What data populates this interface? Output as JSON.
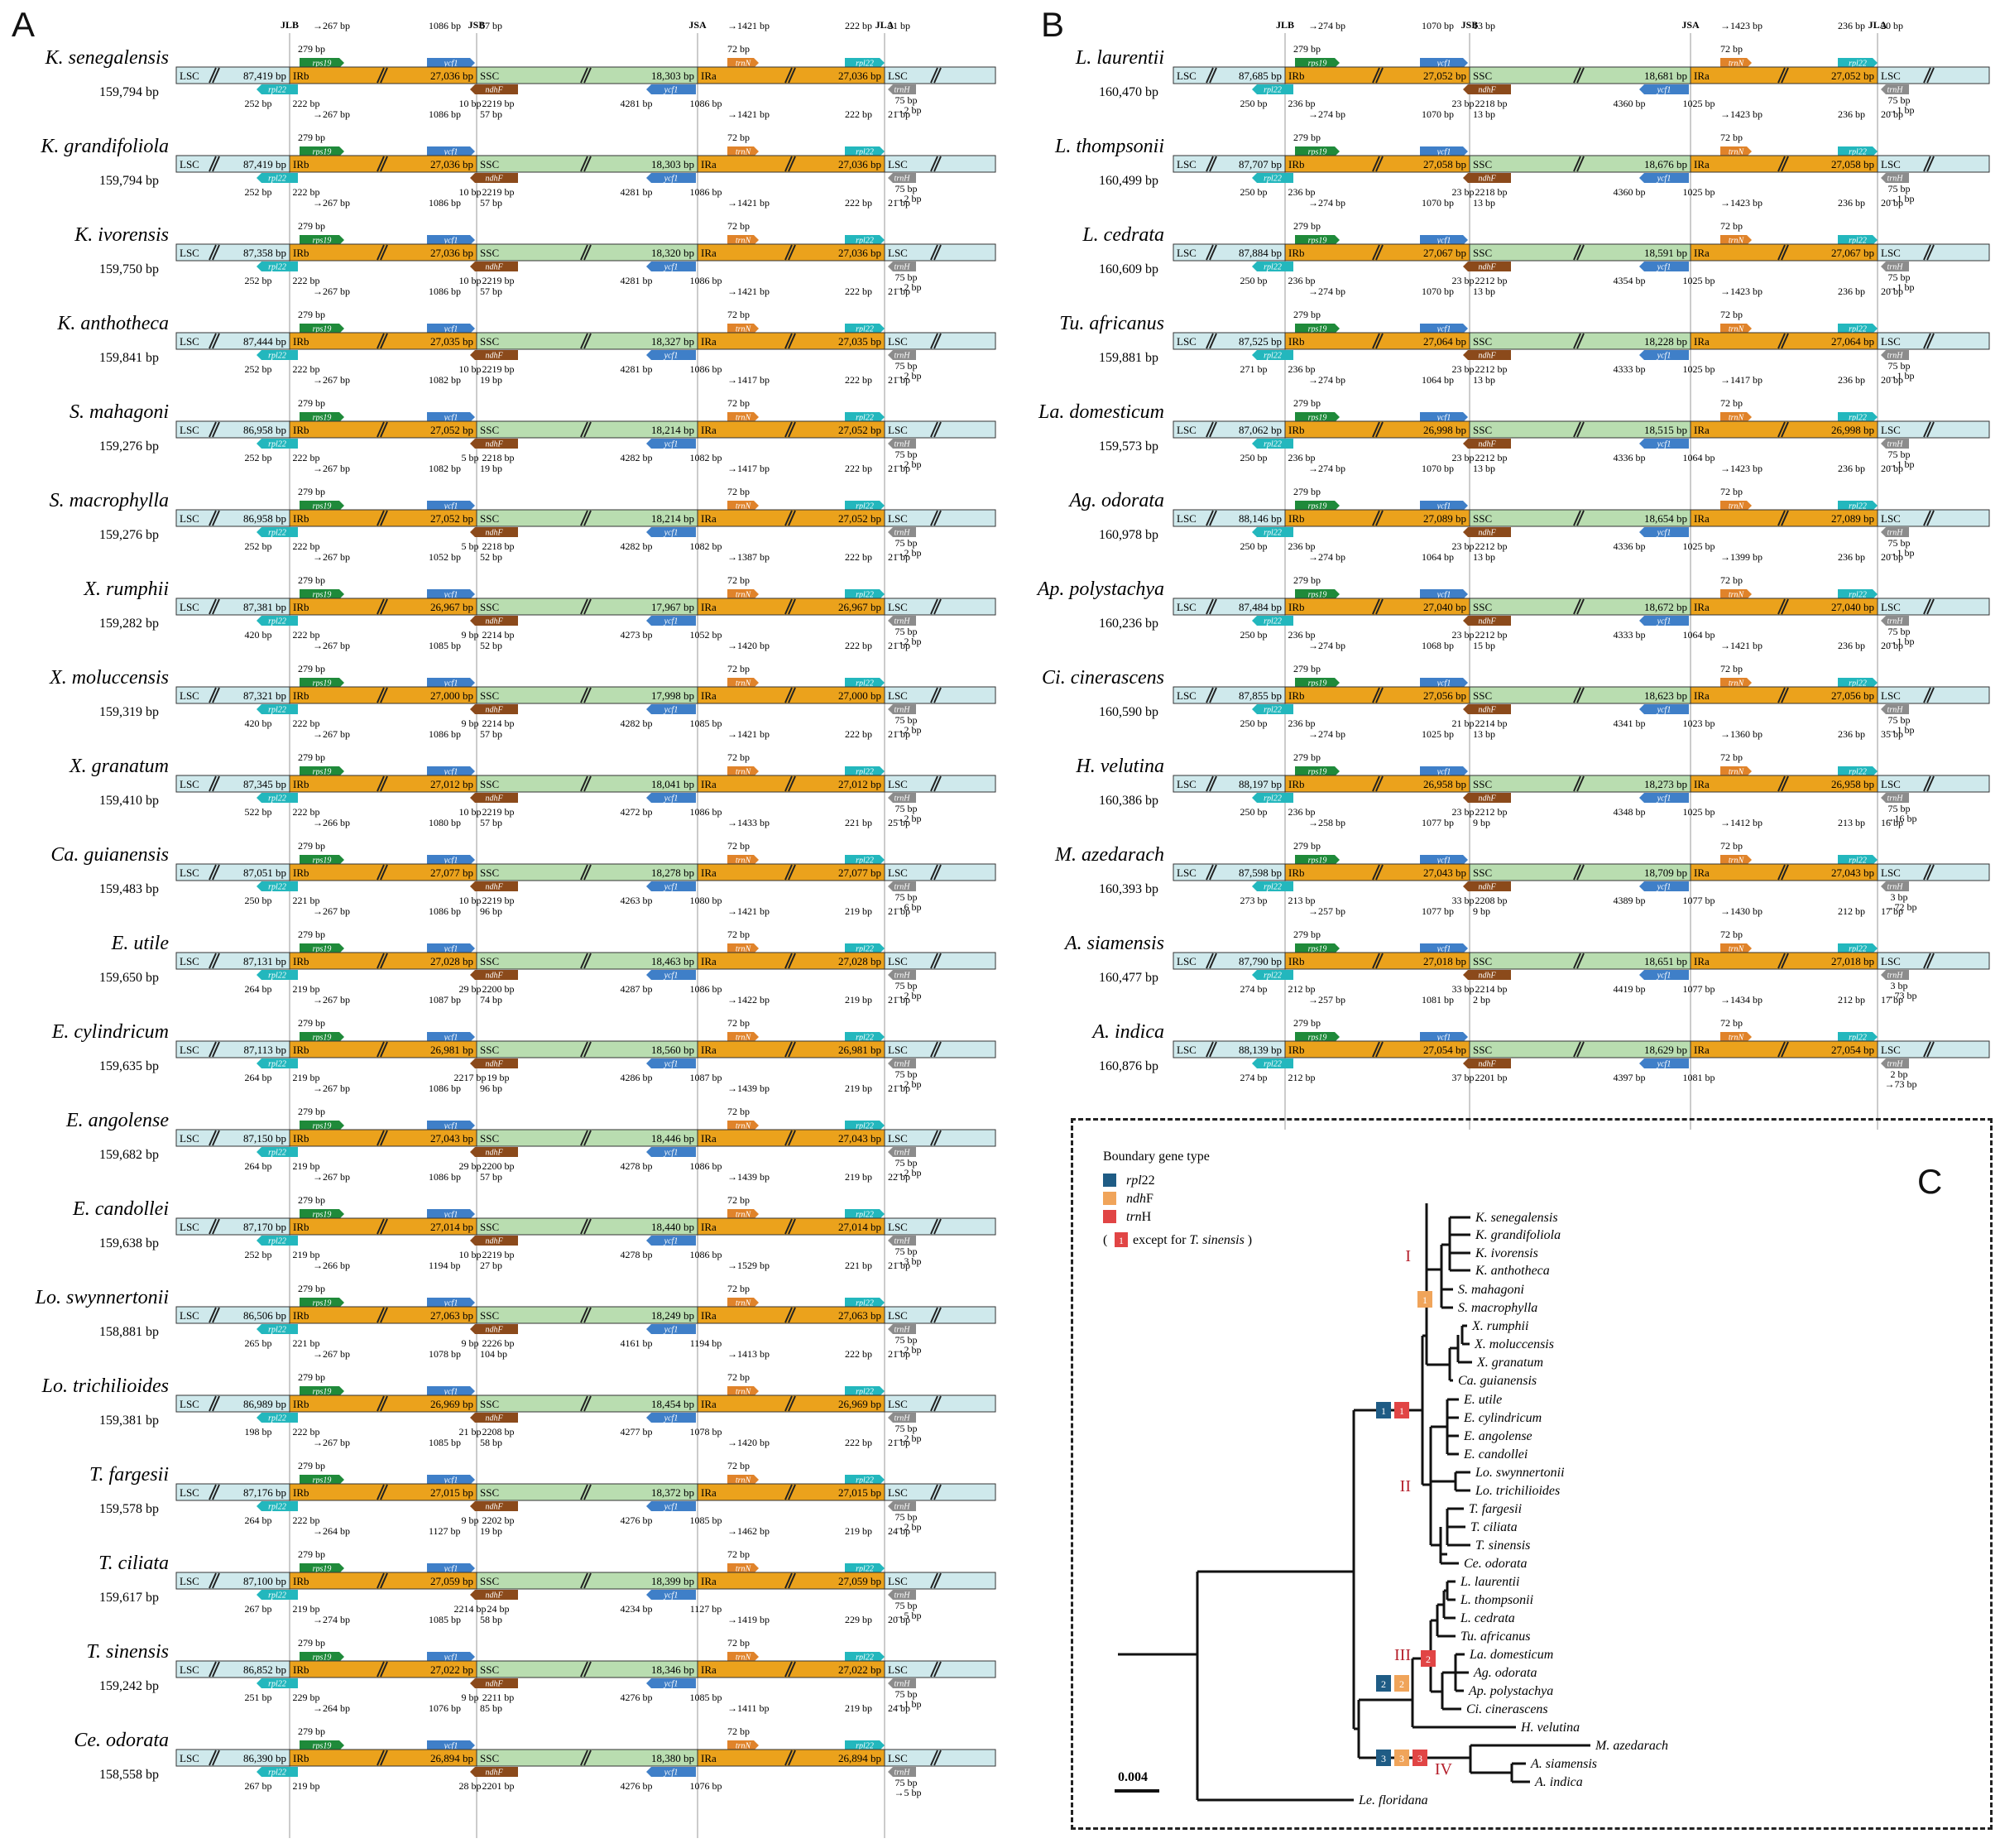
{
  "panels": {
    "a": {
      "letter": "A"
    },
    "b": {
      "letter": "B"
    },
    "c": {
      "letter": "C"
    }
  },
  "junctions": [
    "JLB",
    "JSB",
    "JSA",
    "JLA"
  ],
  "region_labels": {
    "lsc": "LSC",
    "irb": "IRb",
    "ssc": "SSC",
    "ira": "IRa"
  },
  "gene_names": {
    "rps19": "rps19",
    "ycf1": "ycf1",
    "ndhF": "ndhF",
    "trnN": "trnN",
    "rpl22": "rpl22",
    "trnH": "trnH"
  },
  "colors": {
    "lsc": "#cfe9ec",
    "ir": "#eba21c",
    "ssc": "#b9ddb0",
    "rps19": "#1f8a3a",
    "ycf1": "#3f7fc8",
    "ndhF": "#8b4a1b",
    "trnN": "#e0832a",
    "rpl22": "#23b7bd",
    "trnH": "#8c8c8c",
    "rpl22_badge": "#1f5c85",
    "ndhF_badge": "#f0a45a",
    "trnH_badge": "#e14545",
    "roman": "#b5202c"
  },
  "species_a": [
    {
      "name": "K. senegalensis",
      "total": "159,794 bp",
      "lsc": "87,419 bp",
      "irb": "27,036 bp",
      "ssc": "18,303 bp",
      "ira": "27,036 bp",
      "t1": "267 bp",
      "t2": "279 bp",
      "t3": "1086 bp",
      "t4": "57 bp",
      "t5": "1421 bp",
      "t6": "72 bp",
      "t7": "222 bp",
      "t8": "21 bp",
      "b1": "252 bp",
      "b2": "222 bp",
      "b3": "10 bp",
      "b4": "2219 bp",
      "b5": "4281 bp",
      "b6": "1086 bp",
      "b7": "75 bp",
      "b8": "2 bp"
    },
    {
      "name": "K. grandifoliola",
      "total": "159,794 bp",
      "lsc": "87,419 bp",
      "irb": "27,036 bp",
      "ssc": "18,303 bp",
      "ira": "27,036 bp",
      "t1": "267 bp",
      "t2": "279 bp",
      "t3": "1086 bp",
      "t4": "57 bp",
      "t5": "1421 bp",
      "t6": "72 bp",
      "t7": "222 bp",
      "t8": "21 bp",
      "b1": "252 bp",
      "b2": "222 bp",
      "b3": "10 bp",
      "b4": "2219 bp",
      "b5": "4281 bp",
      "b6": "1086 bp",
      "b7": "75 bp",
      "b8": "2 bp"
    },
    {
      "name": "K. ivorensis",
      "total": "159,750 bp",
      "lsc": "87,358 bp",
      "irb": "27,036 bp",
      "ssc": "18,320 bp",
      "ira": "27,036 bp",
      "t1": "267 bp",
      "t2": "279 bp",
      "t3": "1086 bp",
      "t4": "57 bp",
      "t5": "1421 bp",
      "t6": "72 bp",
      "t7": "222 bp",
      "t8": "21 bp",
      "b1": "252 bp",
      "b2": "222 bp",
      "b3": "10 bp",
      "b4": "2219 bp",
      "b5": "4281 bp",
      "b6": "1086 bp",
      "b7": "75 bp",
      "b8": "2 bp"
    },
    {
      "name": "K. anthotheca",
      "total": "159,841 bp",
      "lsc": "87,444 bp",
      "irb": "27,035 bp",
      "ssc": "18,327 bp",
      "ira": "27,035 bp",
      "t1": "267 bp",
      "t2": "279 bp",
      "t3": "1086 bp",
      "t4": "57 bp",
      "t5": "1421 bp",
      "t6": "72 bp",
      "t7": "222 bp",
      "t8": "21 bp",
      "b1": "252 bp",
      "b2": "222 bp",
      "b3": "10 bp",
      "b4": "2219 bp",
      "b5": "4281 bp",
      "b6": "1086 bp",
      "b7": "75 bp",
      "b8": "2 bp"
    },
    {
      "name": "S. mahagoni",
      "total": "159,276 bp",
      "lsc": "86,958 bp",
      "irb": "27,052 bp",
      "ssc": "18,214 bp",
      "ira": "27,052 bp",
      "t1": "267 bp",
      "t2": "279 bp",
      "t3": "1082 bp",
      "t4": "19 bp",
      "t5": "1417 bp",
      "t6": "72 bp",
      "t7": "222 bp",
      "t8": "21 bp",
      "b1": "252 bp",
      "b2": "222 bp",
      "b3": "5 bp",
      "b4": "2218 bp",
      "b5": "4282 bp",
      "b6": "1082 bp",
      "b7": "75 bp",
      "b8": "2 bp"
    },
    {
      "name": "S. macrophylla",
      "total": "159,276 bp",
      "lsc": "86,958 bp",
      "irb": "27,052 bp",
      "ssc": "18,214 bp",
      "ira": "27,052 bp",
      "t1": "267 bp",
      "t2": "279 bp",
      "t3": "1082 bp",
      "t4": "19 bp",
      "t5": "1417 bp",
      "t6": "72 bp",
      "t7": "222 bp",
      "t8": "21 bp",
      "b1": "252 bp",
      "b2": "222 bp",
      "b3": "5 bp",
      "b4": "2218 bp",
      "b5": "4282 bp",
      "b6": "1082 bp",
      "b7": "75 bp",
      "b8": "2 bp"
    },
    {
      "name": "X. rumphii",
      "total": "159,282 bp",
      "lsc": "87,381 bp",
      "irb": "26,967 bp",
      "ssc": "17,967 bp",
      "ira": "26,967 bp",
      "t1": "267 bp",
      "t2": "279 bp",
      "t3": "1052 bp",
      "t4": "52 bp",
      "t5": "1387 bp",
      "t6": "72 bp",
      "t7": "222 bp",
      "t8": "21 bp",
      "b1": "420 bp",
      "b2": "222 bp",
      "b3": "9 bp",
      "b4": "2214 bp",
      "b5": "4273 bp",
      "b6": "1052 bp",
      "b7": "75 bp",
      "b8": "2 bp"
    },
    {
      "name": "X. moluccensis",
      "total": "159,319 bp",
      "lsc": "87,321 bp",
      "irb": "27,000 bp",
      "ssc": "17,998 bp",
      "ira": "27,000 bp",
      "t1": "267 bp",
      "t2": "279 bp",
      "t3": "1085 bp",
      "t4": "52 bp",
      "t5": "1420 bp",
      "t6": "72 bp",
      "t7": "222 bp",
      "t8": "21 bp",
      "b1": "420 bp",
      "b2": "222 bp",
      "b3": "9 bp",
      "b4": "2214 bp",
      "b5": "4282 bp",
      "b6": "1085 bp",
      "b7": "75 bp",
      "b8": "2 bp"
    },
    {
      "name": "X. granatum",
      "total": "159,410 bp",
      "lsc": "87,345 bp",
      "irb": "27,012 bp",
      "ssc": "18,041 bp",
      "ira": "27,012 bp",
      "t1": "267 bp",
      "t2": "279 bp",
      "t3": "1086 bp",
      "t4": "57 bp",
      "t5": "1421 bp",
      "t6": "72 bp",
      "t7": "222 bp",
      "t8": "21 bp",
      "b1": "522 bp",
      "b2": "222 bp",
      "b3": "10 bp",
      "b4": "2219 bp",
      "b5": "4272 bp",
      "b6": "1086 bp",
      "b7": "75 bp",
      "b8": "2 bp"
    },
    {
      "name": "Ca. guianensis",
      "total": "159,483 bp",
      "lsc": "87,051 bp",
      "irb": "27,077 bp",
      "ssc": "18,278 bp",
      "ira": "27,077 bp",
      "t1": "266 bp",
      "t2": "279 bp",
      "t3": "1080 bp",
      "t4": "57 bp",
      "t5": "1433 bp",
      "t6": "72 bp",
      "t7": "221 bp",
      "t8": "25 bp",
      "b1": "250 bp",
      "b2": "221 bp",
      "b3": "10 bp",
      "b4": "2219 bp",
      "b5": "4263 bp",
      "b6": "1080 bp",
      "b7": "75 bp",
      "b8": "6 bp"
    },
    {
      "name": "E. utile",
      "total": "159,650 bp",
      "lsc": "87,131 bp",
      "irb": "27,028 bp",
      "ssc": "18,463 bp",
      "ira": "27,028 bp",
      "t1": "267 bp",
      "t2": "279 bp",
      "t3": "1086 bp",
      "t4": "96 bp",
      "t5": "1421 bp",
      "t6": "72 bp",
      "t7": "219 bp",
      "t8": "21 bp",
      "b1": "264 bp",
      "b2": "219 bp",
      "b3": "29 bp",
      "b4": "2200 bp",
      "b5": "4287 bp",
      "b6": "1086 bp",
      "b7": "75 bp",
      "b8": "2 bp"
    },
    {
      "name": "E. cylindricum",
      "total": "159,635 bp",
      "lsc": "87,113 bp",
      "irb": "26,981 bp",
      "ssc": "18,560 bp",
      "ira": "26,981 bp",
      "t1": "267 bp",
      "t2": "279 bp",
      "t3": "1087 bp",
      "t4": "74 bp",
      "t5": "1422 bp",
      "t6": "72 bp",
      "t7": "219 bp",
      "t8": "21 bp",
      "b1": "264 bp",
      "b2": "219 bp",
      "b3": "2217 bp",
      "b4": "19 bp",
      "b5": "4286 bp",
      "b6": "1087 bp",
      "b7": "75 bp",
      "b8": "2 bp"
    },
    {
      "name": "E. angolense",
      "total": "159,682 bp",
      "lsc": "87,150 bp",
      "irb": "27,043 bp",
      "ssc": "18,446 bp",
      "ira": "27,043 bp",
      "t1": "267 bp",
      "t2": "279 bp",
      "t3": "1086 bp",
      "t4": "96 bp",
      "t5": "1439 bp",
      "t6": "72 bp",
      "t7": "219 bp",
      "t8": "21 bp",
      "b1": "264 bp",
      "b2": "219 bp",
      "b3": "29 bp",
      "b4": "2200 bp",
      "b5": "4278 bp",
      "b6": "1086 bp",
      "b7": "75 bp",
      "b8": "2 bp"
    },
    {
      "name": "E. candollei",
      "total": "159,638 bp",
      "lsc": "87,170 bp",
      "irb": "27,014 bp",
      "ssc": "18,440 bp",
      "ira": "27,014 bp",
      "t1": "267 bp",
      "t2": "279 bp",
      "t3": "1086 bp",
      "t4": "57 bp",
      "t5": "1439 bp",
      "t6": "72 bp",
      "t7": "219 bp",
      "t8": "22 bp",
      "b1": "252 bp",
      "b2": "219 bp",
      "b3": "10 bp",
      "b4": "2219 bp",
      "b5": "4278 bp",
      "b6": "1086 bp",
      "b7": "75 bp",
      "b8": "3 bp"
    },
    {
      "name": "Lo. swynnertonii",
      "total": "158,881 bp",
      "lsc": "86,506 bp",
      "irb": "27,063 bp",
      "ssc": "18,249 bp",
      "ira": "27,063 bp",
      "t1": "266 bp",
      "t2": "279 bp",
      "t3": "1194 bp",
      "t4": "27 bp",
      "t5": "1529 bp",
      "t6": "72 bp",
      "t7": "221 bp",
      "t8": "21 bp",
      "b1": "265 bp",
      "b2": "221 bp",
      "b3": "9 bp",
      "b4": "2226 bp",
      "b5": "4161 bp",
      "b6": "1194 bp",
      "b7": "75 bp",
      "b8": "2 bp"
    },
    {
      "name": "Lo. trichilioides",
      "total": "159,381 bp",
      "lsc": "86,989 bp",
      "irb": "26,969 bp",
      "ssc": "18,454 bp",
      "ira": "26,969 bp",
      "t1": "267 bp",
      "t2": "279 bp",
      "t3": "1078 bp",
      "t4": "104 bp",
      "t5": "1413 bp",
      "t6": "72 bp",
      "t7": "222 bp",
      "t8": "21 bp",
      "b1": "198 bp",
      "b2": "222 bp",
      "b3": "21 bp",
      "b4": "2208 bp",
      "b5": "4277 bp",
      "b6": "1078 bp",
      "b7": "75 bp",
      "b8": "2 bp"
    },
    {
      "name": "T. fargesii",
      "total": "159,578 bp",
      "lsc": "87,176 bp",
      "irb": "27,015 bp",
      "ssc": "18,372 bp",
      "ira": "27,015 bp",
      "t1": "267 bp",
      "t2": "279 bp",
      "t3": "1085 bp",
      "t4": "58 bp",
      "t5": "1420 bp",
      "t6": "72 bp",
      "t7": "222 bp",
      "t8": "21 bp",
      "b1": "264 bp",
      "b2": "222 bp",
      "b3": "9 bp",
      "b4": "2202 bp",
      "b5": "4276 bp",
      "b6": "1085 bp",
      "b7": "75 bp",
      "b8": "2 bp"
    },
    {
      "name": "T. ciliata",
      "total": "159,617 bp",
      "lsc": "87,100 bp",
      "irb": "27,059 bp",
      "ssc": "18,399 bp",
      "ira": "27,059 bp",
      "t1": "264 bp",
      "t2": "279 bp",
      "t3": "1127 bp",
      "t4": "19 bp",
      "t5": "1462 bp",
      "t6": "72 bp",
      "t7": "219 bp",
      "t8": "24 bp",
      "b1": "267 bp",
      "b2": "219 bp",
      "b3": "2214 bp",
      "b4": "24 bp",
      "b5": "4234 bp",
      "b6": "1127 bp",
      "b7": "75 bp",
      "b8": "5 bp"
    },
    {
      "name": "T. sinensis",
      "total": "159,242 bp",
      "lsc": "86,852 bp",
      "irb": "27,022 bp",
      "ssc": "18,346 bp",
      "ira": "27,022 bp",
      "t1": "274 bp",
      "t2": "279 bp",
      "t3": "1085 bp",
      "t4": "58 bp",
      "t5": "1419 bp",
      "t6": "72 bp",
      "t7": "229 bp",
      "t8": "20 bp",
      "b1": "251 bp",
      "b2": "229 bp",
      "b3": "9 bp",
      "b4": "2211 bp",
      "b5": "4276 bp",
      "b6": "1085 bp",
      "b7": "75 bp",
      "b8": "1 bp"
    },
    {
      "name": "Ce. odorata",
      "total": "158,558 bp",
      "lsc": "86,390 bp",
      "irb": "26,894 bp",
      "ssc": "18,380 bp",
      "ira": "26,894 bp",
      "t1": "264 bp",
      "t2": "279 bp",
      "t3": "1076 bp",
      "t4": "85 bp",
      "t5": "1411 bp",
      "t6": "72 bp",
      "t7": "219 bp",
      "t8": "24 bp",
      "b1": "267 bp",
      "b2": "219 bp",
      "b3": "28 bp",
      "b4": "2201 bp",
      "b5": "4276 bp",
      "b6": "1076 bp",
      "b7": "75 bp",
      "b8": "5 bp"
    }
  ],
  "species_b": [
    {
      "name": "L. laurentii",
      "total": "160,470 bp",
      "lsc": "87,685 bp",
      "irb": "27,052 bp",
      "ssc": "18,681 bp",
      "ira": "27,052 bp",
      "t1": "274 bp",
      "t2": "279 bp",
      "t3": "1070 bp",
      "t4": "13 bp",
      "t5": "1423 bp",
      "t6": "72 bp",
      "t7": "236 bp",
      "t8": "20 bp",
      "b1": "250 bp",
      "b2": "236 bp",
      "b3": "23 bp",
      "b4": "2218 bp",
      "b5": "4360 bp",
      "b6": "1025 bp",
      "b7": "75 bp",
      "b8": "1 bp"
    },
    {
      "name": "L. thompsonii",
      "total": "160,499 bp",
      "lsc": "87,707 bp",
      "irb": "27,058 bp",
      "ssc": "18,676 bp",
      "ira": "27,058 bp",
      "t1": "274 bp",
      "t2": "279 bp",
      "t3": "1070 bp",
      "t4": "13 bp",
      "t5": "1423 bp",
      "t6": "72 bp",
      "t7": "236 bp",
      "t8": "20 bp",
      "b1": "250 bp",
      "b2": "236 bp",
      "b3": "23 bp",
      "b4": "2218 bp",
      "b5": "4360 bp",
      "b6": "1025 bp",
      "b7": "75 bp",
      "b8": "1 bp"
    },
    {
      "name": "L. cedrata",
      "total": "160,609 bp",
      "lsc": "87,884 bp",
      "irb": "27,067 bp",
      "ssc": "18,591 bp",
      "ira": "27,067 bp",
      "t1": "274 bp",
      "t2": "279 bp",
      "t3": "1070 bp",
      "t4": "13 bp",
      "t5": "1423 bp",
      "t6": "72 bp",
      "t7": "236 bp",
      "t8": "20 bp",
      "b1": "250 bp",
      "b2": "236 bp",
      "b3": "23 bp",
      "b4": "2212 bp",
      "b5": "4354 bp",
      "b6": "1025 bp",
      "b7": "75 bp",
      "b8": "1 bp"
    },
    {
      "name": "Tu. africanus",
      "total": "159,881 bp",
      "lsc": "87,525 bp",
      "irb": "27,064 bp",
      "ssc": "18,228 bp",
      "ira": "27,064 bp",
      "t1": "274 bp",
      "t2": "279 bp",
      "t3": "1070 bp",
      "t4": "13 bp",
      "t5": "1423 bp",
      "t6": "72 bp",
      "t7": "236 bp",
      "t8": "20 bp",
      "b1": "271 bp",
      "b2": "236 bp",
      "b3": "23 bp",
      "b4": "2212 bp",
      "b5": "4333 bp",
      "b6": "1025 bp",
      "b7": "75 bp",
      "b8": "1 bp"
    },
    {
      "name": "La. domesticum",
      "total": "159,573 bp",
      "lsc": "87,062 bp",
      "irb": "26,998 bp",
      "ssc": "18,515 bp",
      "ira": "26,998 bp",
      "t1": "274 bp",
      "t2": "279 bp",
      "t3": "1064 bp",
      "t4": "13 bp",
      "t5": "1417 bp",
      "t6": "72 bp",
      "t7": "236 bp",
      "t8": "20 bp",
      "b1": "250 bp",
      "b2": "236 bp",
      "b3": "23 bp",
      "b4": "2212 bp",
      "b5": "4336 bp",
      "b6": "1064 bp",
      "b7": "75 bp",
      "b8": "1 bp"
    },
    {
      "name": "Ag. odorata",
      "total": "160,978 bp",
      "lsc": "88,146 bp",
      "irb": "27,089 bp",
      "ssc": "18,654 bp",
      "ira": "27,089 bp",
      "t1": "274 bp",
      "t2": "279 bp",
      "t3": "1070 bp",
      "t4": "13 bp",
      "t5": "1423 bp",
      "t6": "72 bp",
      "t7": "236 bp",
      "t8": "20 bp",
      "b1": "250 bp",
      "b2": "236 bp",
      "b3": "23 bp",
      "b4": "2212 bp",
      "b5": "4336 bp",
      "b6": "1025 bp",
      "b7": "75 bp",
      "b8": "1 bp"
    },
    {
      "name": "Ap. polystachya",
      "total": "160,236 bp",
      "lsc": "87,484 bp",
      "irb": "27,040 bp",
      "ssc": "18,672 bp",
      "ira": "27,040 bp",
      "t1": "274 bp",
      "t2": "279 bp",
      "t3": "1064 bp",
      "t4": "13 bp",
      "t5": "1399 bp",
      "t6": "72 bp",
      "t7": "236 bp",
      "t8": "20 bp",
      "b1": "250 bp",
      "b2": "236 bp",
      "b3": "23 bp",
      "b4": "2212 bp",
      "b5": "4333 bp",
      "b6": "1064 bp",
      "b7": "75 bp",
      "b8": "1 bp"
    },
    {
      "name": "Ci. cinerascens",
      "total": "160,590 bp",
      "lsc": "87,855 bp",
      "irb": "27,056 bp",
      "ssc": "18,623 bp",
      "ira": "27,056 bp",
      "t1": "274 bp",
      "t2": "279 bp",
      "t3": "1068 bp",
      "t4": "15 bp",
      "t5": "1421 bp",
      "t6": "72 bp",
      "t7": "236 bp",
      "t8": "20 bp",
      "b1": "250 bp",
      "b2": "236 bp",
      "b3": "21 bp",
      "b4": "2214 bp",
      "b5": "4341 bp",
      "b6": "1023 bp",
      "b7": "75 bp",
      "b8": "1 bp"
    },
    {
      "name": "H. velutina",
      "total": "160,386 bp",
      "lsc": "88,197 bp",
      "irb": "26,958 bp",
      "ssc": "18,273 bp",
      "ira": "26,958 bp",
      "t1": "274 bp",
      "t2": "279 bp",
      "t3": "1025 bp",
      "t4": "13 bp",
      "t5": "1360 bp",
      "t6": "72 bp",
      "t7": "236 bp",
      "t8": "35 bp",
      "b1": "250 bp",
      "b2": "236 bp",
      "b3": "23 bp",
      "b4": "2212 bp",
      "b5": "4348 bp",
      "b6": "1025 bp",
      "b7": "75 bp",
      "b8": "16 bp"
    },
    {
      "name": "M. azedarach",
      "total": "160,393 bp",
      "lsc": "87,598 bp",
      "irb": "27,043 bp",
      "ssc": "18,709 bp",
      "ira": "27,043 bp",
      "t1": "258 bp",
      "t2": "279 bp",
      "t3": "1077 bp",
      "t4": "9 bp",
      "t5": "1412 bp",
      "t6": "72 bp",
      "t7": "213 bp",
      "t8": "16 bp",
      "b1": "273 bp",
      "b2": "213 bp",
      "b3": "33 bp",
      "b4": "2208 bp",
      "b5": "4389 bp",
      "b6": "1077 bp",
      "b7": "3 bp",
      "b8": "72 bp"
    },
    {
      "name": "A. siamensis",
      "total": "160,477 bp",
      "lsc": "87,790 bp",
      "irb": "27,018 bp",
      "ssc": "18,651 bp",
      "ira": "27,018 bp",
      "t1": "257 bp",
      "t2": "279 bp",
      "t3": "1077 bp",
      "t4": "9 bp",
      "t5": "1430 bp",
      "t6": "72 bp",
      "t7": "212 bp",
      "t8": "17 bp",
      "b1": "274 bp",
      "b2": "212 bp",
      "b3": "33 bp",
      "b4": "2214 bp",
      "b5": "4419 bp",
      "b6": "1077 bp",
      "b7": "3 bp",
      "b8": "73 bp"
    },
    {
      "name": "A. indica",
      "total": "160,876 bp",
      "lsc": "88,139 bp",
      "irb": "27,054 bp",
      "ssc": "18,629 bp",
      "ira": "27,054 bp",
      "t1": "257 bp",
      "t2": "279 bp",
      "t3": "1081 bp",
      "t4": "2 bp",
      "t5": "1434 bp",
      "t6": "72 bp",
      "t7": "212 bp",
      "t8": "17 bp",
      "b1": "274 bp",
      "b2": "212 bp",
      "b3": "37 bp",
      "b4": "2201 bp",
      "b5": "4397 bp",
      "b6": "1081 bp",
      "b7": "2 bp",
      "b8": "73 bp"
    }
  ],
  "legend": {
    "title": "Boundary gene type",
    "items": [
      {
        "gene_italic": "rpl",
        "gene_rest": "22",
        "color": "#1f5c85"
      },
      {
        "gene_italic": "ndh",
        "gene_rest": "F",
        "color": "#f0a45a"
      },
      {
        "gene_italic": "trn",
        "gene_rest": "H",
        "color": "#e14545"
      }
    ],
    "note_prefix": "(",
    "note_badge": "1",
    "note_text": "except for",
    "note_species": "T. sinensis",
    "note_suffix": ")"
  },
  "tree": {
    "tips": [
      "K. senegalensis",
      "K. grandifoliola",
      "K. ivorensis",
      "K. anthotheca",
      "S. mahagoni",
      "S. macrophylla",
      "X. rumphii",
      "X. moluccensis",
      "X. granatum",
      "Ca. guianensis",
      "E. utile",
      "E. cylindricum",
      "E. angolense",
      "E. candollei",
      "Lo. swynnertonii",
      "Lo. trichilioides",
      "T. fargesii",
      "T. ciliata",
      "T. sinensis",
      "Ce. odorata",
      "L. laurentii",
      "L. thompsonii",
      "L. cedrata",
      "Tu. africanus",
      "La. domesticum",
      "Ag. odorata",
      "Ap. polystachya",
      "Ci. cinerascens",
      "H. velutina",
      "M. azedarach",
      "A. siamensis",
      "A. indica",
      "Le. floridana"
    ],
    "clades": [
      "I",
      "II",
      "III",
      "IV"
    ],
    "badges": {
      "one": "1",
      "two": "2",
      "three": "3"
    },
    "scale": "0.004"
  }
}
